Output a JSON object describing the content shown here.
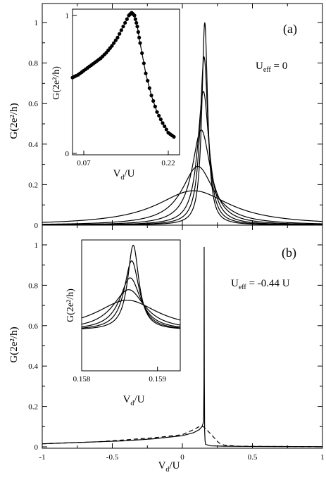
{
  "figure": {
    "x_axis_label_main": "V",
    "x_axis_label_sub": "d",
    "x_axis_label_suffix": "/U",
    "y_axis_label": "G(2e²/h)",
    "x_ticks": [
      "-1",
      "-0.5",
      "0",
      "0.5",
      "1"
    ]
  },
  "panel_a": {
    "tag": "(a)",
    "annotation_main": "U",
    "annotation_sub": "eff",
    "annotation_suffix": " = 0",
    "y_ticks": [
      "0",
      "0.2",
      "0.4",
      "0.6",
      "0.8",
      "1"
    ],
    "inset": {
      "y_ticks": [
        "0",
        "1"
      ],
      "x_ticks": [
        "0.07",
        "0.22"
      ]
    }
  },
  "panel_b": {
    "tag": "(b)",
    "annotation_main": "U",
    "annotation_sub": "eff",
    "annotation_suffix": " = -0.44 U",
    "y_ticks": [
      "0",
      "0.2",
      "0.4",
      "0.6",
      "0.8",
      "1"
    ],
    "inset": {
      "x_ticks": [
        "0.158",
        "0.159"
      ]
    }
  },
  "chart_data": [
    {
      "type": "line",
      "panel": "a",
      "xlim": [
        -1,
        1
      ],
      "ylim": [
        0,
        1.05
      ],
      "note": "Lorentzian-like resonances centered near Vd/U≈0.15 with increasing width",
      "series": [
        {
          "peak_x": 0.16,
          "peak_y": 1.0,
          "half_width": 0.025
        },
        {
          "peak_x": 0.155,
          "peak_y": 0.83,
          "half_width": 0.035
        },
        {
          "peak_x": 0.15,
          "peak_y": 0.66,
          "half_width": 0.05
        },
        {
          "peak_x": 0.135,
          "peak_y": 0.47,
          "half_width": 0.08
        },
        {
          "peak_x": 0.11,
          "peak_y": 0.29,
          "half_width": 0.14
        },
        {
          "peak_x": 0.08,
          "peak_y": 0.17,
          "half_width": 0.32
        }
      ]
    },
    {
      "type": "scatter",
      "panel": "a-inset",
      "xlim": [
        0.05,
        0.24
      ],
      "ylim": [
        0,
        1.05
      ],
      "x": [
        0.05,
        0.06,
        0.07,
        0.08,
        0.09,
        0.1,
        0.11,
        0.12,
        0.13,
        0.14,
        0.15,
        0.155,
        0.16,
        0.165,
        0.17,
        0.18,
        0.19,
        0.2,
        0.21,
        0.22,
        0.23
      ],
      "values": [
        0.55,
        0.57,
        0.6,
        0.63,
        0.66,
        0.69,
        0.73,
        0.78,
        0.84,
        0.92,
        1.0,
        1.02,
        1.0,
        0.92,
        0.8,
        0.58,
        0.42,
        0.3,
        0.22,
        0.15,
        0.12
      ]
    },
    {
      "type": "line",
      "panel": "b",
      "xlim": [
        -1,
        1
      ],
      "ylim": [
        0,
        1.05
      ],
      "series": [
        {
          "style": "solid",
          "x": [
            -1,
            -0.8,
            -0.6,
            -0.4,
            -0.2,
            0,
            0.08,
            0.12,
            0.14,
            0.15,
            0.152,
            0.154,
            0.1555,
            0.157,
            0.159,
            0.162,
            0.166,
            0.2,
            0.3,
            0.5,
            1
          ],
          "values": [
            0.015,
            0.02,
            0.025,
            0.03,
            0.04,
            0.055,
            0.07,
            0.085,
            0.1,
            0.12,
            0.15,
            0.3,
            0.99,
            0.35,
            0.08,
            0.03,
            0.012,
            0.005,
            0.003,
            0.002,
            0.001
          ]
        },
        {
          "style": "dashed",
          "x": [
            -1,
            -0.6,
            -0.2,
            0,
            0.08,
            0.12,
            0.15,
            0.18,
            0.22,
            0.26,
            0.3,
            0.4,
            0.6,
            1
          ],
          "values": [
            0.015,
            0.025,
            0.045,
            0.06,
            0.085,
            0.1,
            0.1,
            0.08,
            0.05,
            0.02,
            0.008,
            0.003,
            0.002,
            0.001
          ]
        }
      ]
    },
    {
      "type": "line",
      "panel": "b-inset",
      "xlim": [
        0.158,
        0.1593
      ],
      "ylim": [
        0,
        1.05
      ],
      "series": [
        {
          "center": 0.15868,
          "peak_y": 0.96,
          "half_width": 9e-05,
          "base": 0.31
        },
        {
          "center": 0.15866,
          "peak_y": 0.84,
          "half_width": 0.00012,
          "base": 0.31
        },
        {
          "center": 0.15864,
          "peak_y": 0.71,
          "half_width": 0.00017,
          "base": 0.31
        },
        {
          "center": 0.15862,
          "peak_y": 0.62,
          "half_width": 0.00026,
          "base": 0.31
        },
        {
          "center": 0.1586,
          "peak_y": 0.54,
          "half_width": 0.0005,
          "base": 0.31
        }
      ]
    }
  ]
}
